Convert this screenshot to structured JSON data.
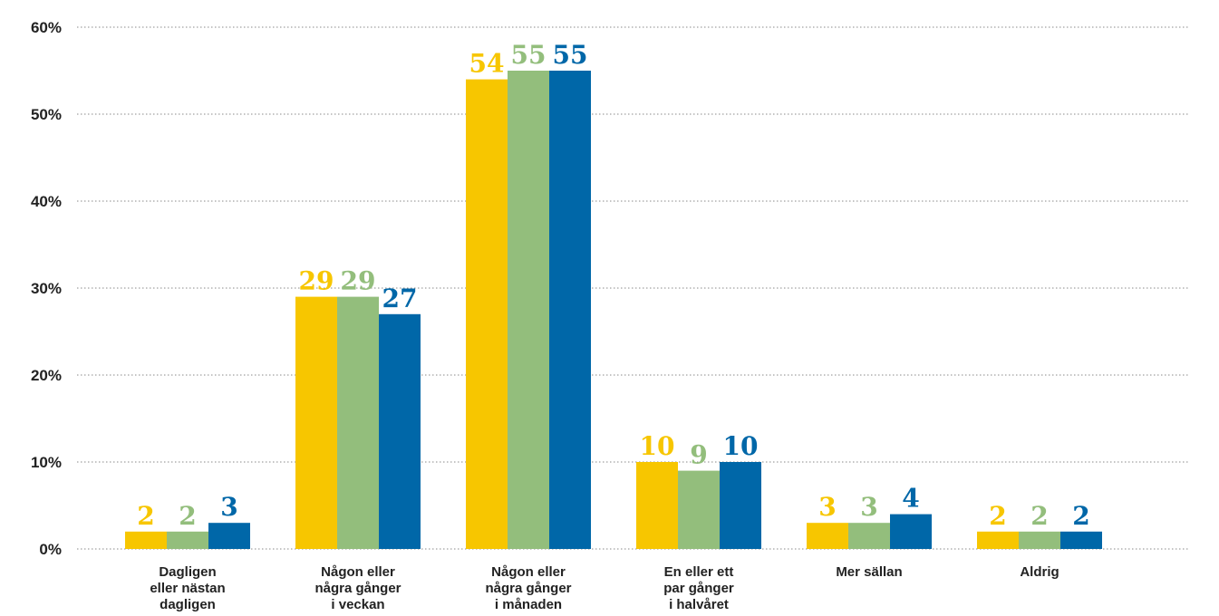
{
  "chart_data": {
    "type": "bar",
    "categories": [
      [
        "Dagligen",
        "eller nästan",
        "dagligen"
      ],
      [
        "Någon eller",
        "några gånger",
        "i veckan"
      ],
      [
        "Någon eller",
        "några gånger",
        "i månaden"
      ],
      [
        "En eller ett",
        "par gånger",
        "i halvåret"
      ],
      [
        "Mer sällan"
      ],
      [
        "Aldrig"
      ]
    ],
    "series": [
      {
        "color": "#f7c600",
        "values": [
          2,
          29,
          54,
          10,
          3,
          2
        ]
      },
      {
        "color": "#93be7c",
        "values": [
          2,
          29,
          55,
          9,
          3,
          2
        ]
      },
      {
        "color": "#0067a8",
        "values": [
          3,
          27,
          55,
          10,
          4,
          2
        ]
      }
    ],
    "y_ticks": [
      "0%",
      "10%",
      "20%",
      "30%",
      "40%",
      "50%",
      "60%"
    ],
    "ylim": [
      0,
      60
    ],
    "grid": true,
    "title": "",
    "xlabel": "",
    "ylabel": ""
  }
}
